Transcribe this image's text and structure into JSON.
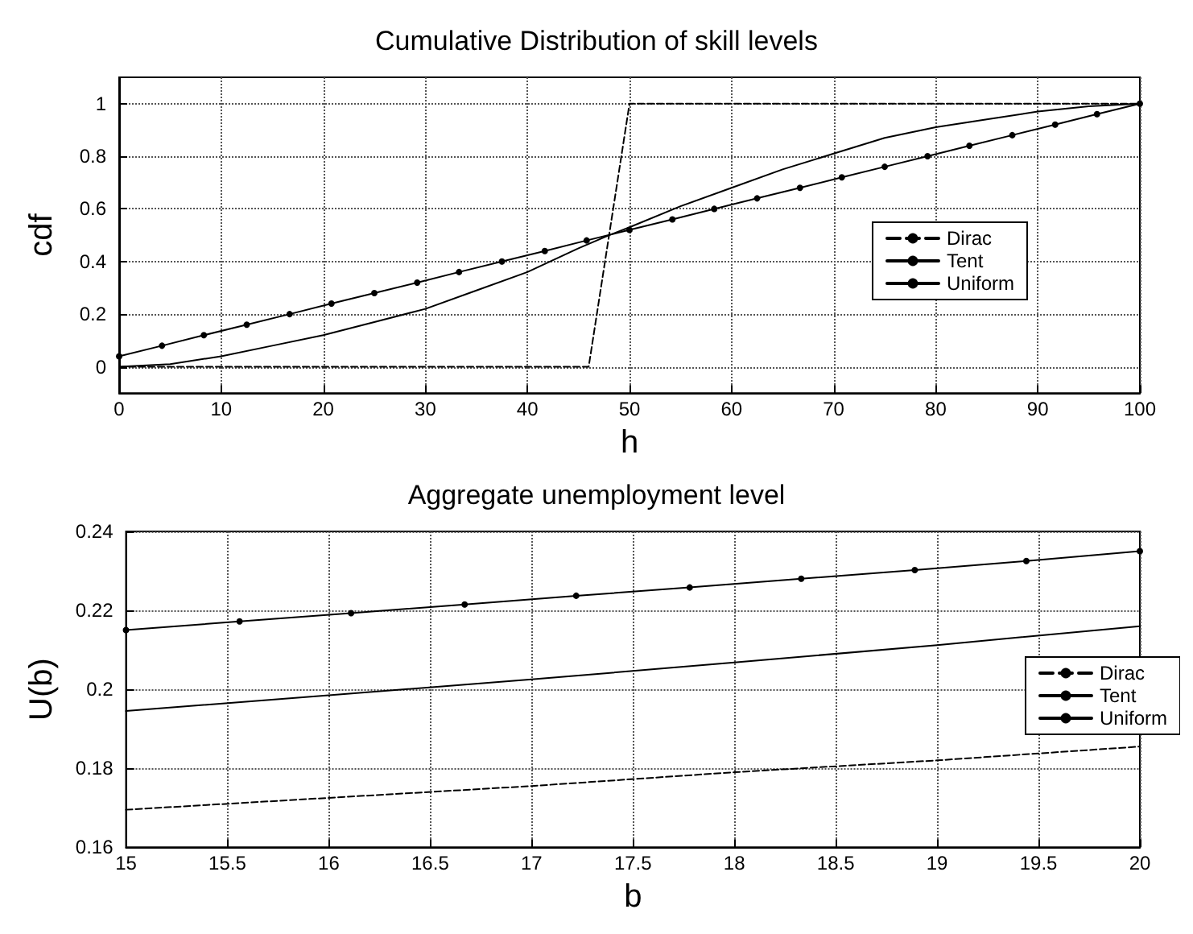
{
  "chart_data": [
    {
      "type": "line",
      "title": "Cumulative Distribution of skill levels",
      "xlabel": "h",
      "ylabel": "cdf",
      "xlim": [
        0,
        100
      ],
      "xticks": [
        0,
        10,
        20,
        30,
        40,
        50,
        60,
        70,
        80,
        90,
        100
      ],
      "ylim": [
        -0.1,
        1.1
      ],
      "yticks": [
        0,
        0.2,
        0.4,
        0.6,
        0.8,
        1
      ],
      "grid": true,
      "legend": "right",
      "series": [
        {
          "name": "Dirac",
          "color": "#000000",
          "line_style": "dashed",
          "marker": "none",
          "x": [
            0,
            46,
            50,
            100
          ],
          "values": [
            0,
            0,
            1,
            1
          ]
        },
        {
          "name": "Tent",
          "color": "#000000",
          "line_style": "solid",
          "marker": "none",
          "x": [
            0,
            5,
            10,
            15,
            20,
            25,
            30,
            35,
            40,
            45,
            48,
            50,
            55,
            60,
            65,
            70,
            75,
            80,
            85,
            90,
            95,
            100
          ],
          "values": [
            0,
            0.01,
            0.04,
            0.08,
            0.12,
            0.17,
            0.22,
            0.29,
            0.36,
            0.45,
            0.5,
            0.53,
            0.61,
            0.68,
            0.75,
            0.81,
            0.87,
            0.91,
            0.94,
            0.97,
            0.99,
            1
          ]
        },
        {
          "name": "Uniform",
          "color": "#000000",
          "line_style": "solid",
          "marker": "circle",
          "x": [
            0,
            4.2,
            8.3,
            12.5,
            16.7,
            20.8,
            25,
            29.2,
            33.3,
            37.5,
            41.7,
            45.8,
            50,
            54.2,
            58.3,
            62.5,
            66.7,
            70.8,
            75,
            79.2,
            83.3,
            87.5,
            91.7,
            95.8,
            100
          ],
          "values": [
            0.04,
            0.08,
            0.12,
            0.16,
            0.2,
            0.24,
            0.28,
            0.32,
            0.36,
            0.4,
            0.44,
            0.48,
            0.52,
            0.56,
            0.6,
            0.64,
            0.68,
            0.72,
            0.76,
            0.8,
            0.84,
            0.88,
            0.92,
            0.96,
            1
          ]
        }
      ]
    },
    {
      "type": "line",
      "title": "Aggregate unemployment level",
      "xlabel": "b",
      "ylabel": "U(b)",
      "xlim": [
        15,
        20
      ],
      "xticks": [
        15,
        15.5,
        16,
        16.5,
        17,
        17.5,
        18,
        18.5,
        19,
        19.5,
        20
      ],
      "ylim": [
        0.16,
        0.24
      ],
      "yticks": [
        0.16,
        0.18,
        0.2,
        0.22,
        0.24
      ],
      "grid": true,
      "legend": "right",
      "series": [
        {
          "name": "Dirac",
          "color": "#000000",
          "line_style": "dashed",
          "marker": "none",
          "x": [
            15,
            16,
            17,
            18,
            19,
            20
          ],
          "values": [
            0.1695,
            0.1725,
            0.1755,
            0.179,
            0.182,
            0.1855
          ]
        },
        {
          "name": "Tent",
          "color": "#000000",
          "line_style": "solid",
          "marker": "none",
          "x": [
            15,
            16,
            17,
            18,
            19,
            20
          ],
          "values": [
            0.1945,
            0.1985,
            0.2025,
            0.2068,
            0.2112,
            0.216
          ]
        },
        {
          "name": "Uniform",
          "color": "#000000",
          "line_style": "solid",
          "marker": "circle",
          "x": [
            15,
            15.56,
            16.11,
            16.67,
            17.22,
            17.78,
            18.33,
            18.89,
            19.44,
            20
          ],
          "values": [
            0.215,
            0.2172,
            0.2193,
            0.2215,
            0.2237,
            0.2258,
            0.228,
            0.2302,
            0.2325,
            0.235
          ]
        }
      ]
    }
  ]
}
